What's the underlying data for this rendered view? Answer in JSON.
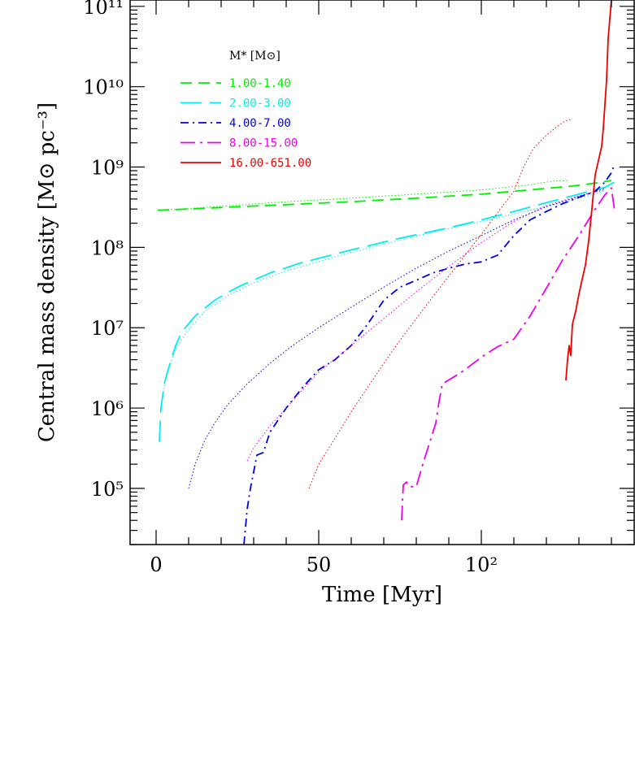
{
  "chart_data": {
    "type": "line",
    "title": "",
    "xlabel": "Time [Myr]",
    "ylabel": "Central mass density [M⊙ pc⁻³]",
    "xlim": [
      -8,
      147
    ],
    "ylim": [
      20000,
      120000000000
    ],
    "yscale": "log",
    "grid": false,
    "legend_placement": "top-left",
    "x_ticks": [
      {
        "value": 0,
        "label": "0"
      },
      {
        "value": 50,
        "label": "50"
      },
      {
        "value": 100,
        "label": "10²"
      }
    ],
    "y_ticks": [
      {
        "value": 100000,
        "label": "10⁵"
      },
      {
        "value": 1000000,
        "label": "10⁶"
      },
      {
        "value": 10000000,
        "label": "10⁷"
      },
      {
        "value": 100000000,
        "label": "10⁸"
      },
      {
        "value": 1000000000,
        "label": "10⁹"
      },
      {
        "value": 10000000000,
        "label": "10¹⁰"
      },
      {
        "value": 100000000000,
        "label": "10¹¹"
      }
    ],
    "legend_title": "M* [M⊙]",
    "series": [
      {
        "name": "1.00-1.40",
        "color": "#00ee00",
        "style": "dashed",
        "points": [
          [
            0.5,
            290000000.0
          ],
          [
            10,
            300000000.0
          ],
          [
            25,
            320000000.0
          ],
          [
            40,
            340000000.0
          ],
          [
            60,
            370000000.0
          ],
          [
            80,
            410000000.0
          ],
          [
            100,
            460000000.0
          ],
          [
            115,
            520000000.0
          ],
          [
            128,
            580000000.0
          ],
          [
            135,
            630000000.0
          ],
          [
            140,
            680000000.0
          ]
        ]
      },
      {
        "name": "1.00-1.40 (dotted)",
        "color": "#00ee00",
        "style": "dotted",
        "points": [
          [
            0.5,
            290000000.0
          ],
          [
            10,
            305000000.0
          ],
          [
            25,
            335000000.0
          ],
          [
            40,
            370000000.0
          ],
          [
            60,
            410000000.0
          ],
          [
            80,
            460000000.0
          ],
          [
            100,
            520000000.0
          ],
          [
            115,
            600000000.0
          ],
          [
            122,
            670000000.0
          ],
          [
            127,
            680000000.0
          ]
        ]
      },
      {
        "name": "2.00-3.00",
        "color": "#00eeee",
        "style": "longdash",
        "points": [
          [
            1,
            380000.0
          ],
          [
            1.5,
            1000000.0
          ],
          [
            2.5,
            2000000.0
          ],
          [
            4,
            3300000.0
          ],
          [
            6,
            6000000.0
          ],
          [
            8,
            9000000.0
          ],
          [
            12,
            14000000.0
          ],
          [
            18,
            22000000.0
          ],
          [
            25,
            32000000.0
          ],
          [
            35,
            48000000.0
          ],
          [
            45,
            65000000.0
          ],
          [
            60,
            93000000.0
          ],
          [
            75,
            130000000.0
          ],
          [
            90,
            175000000.0
          ],
          [
            100,
            220000000.0
          ],
          [
            110,
            280000000.0
          ],
          [
            120,
            360000000.0
          ],
          [
            130,
            460000000.0
          ],
          [
            138,
            560000000.0
          ],
          [
            141,
            650000000.0
          ]
        ]
      },
      {
        "name": "2.00-3.00 (dotted)",
        "color": "#00eeee",
        "style": "dotted",
        "points": [
          [
            1.5,
            1000000.0
          ],
          [
            3,
            2500000.0
          ],
          [
            6,
            5500000.0
          ],
          [
            10,
            9500000.0
          ],
          [
            15,
            16000000.0
          ],
          [
            22,
            25000000.0
          ],
          [
            30,
            36000000.0
          ],
          [
            40,
            51000000.0
          ],
          [
            55,
            76000000.0
          ],
          [
            70,
            110000000.0
          ],
          [
            85,
            155000000.0
          ],
          [
            100,
            210000000.0
          ],
          [
            115,
            290000000.0
          ],
          [
            128,
            390000000.0
          ],
          [
            138,
            500000000.0
          ]
        ]
      },
      {
        "name": "4.00-7.00 (dotted)",
        "color": "#0000cc",
        "style": "dotted",
        "points": [
          [
            10,
            100000.0
          ],
          [
            12,
            200000.0
          ],
          [
            15,
            400000.0
          ],
          [
            18,
            650000.0
          ],
          [
            22,
            1100000.0
          ],
          [
            28,
            2000000.0
          ],
          [
            35,
            3600000.0
          ],
          [
            42,
            6000000.0
          ],
          [
            50,
            10000000.0
          ],
          [
            60,
            18000000.0
          ],
          [
            70,
            32000000.0
          ],
          [
            80,
            55000000.0
          ],
          [
            90,
            90000000.0
          ],
          [
            100,
            140000000.0
          ],
          [
            110,
            220000000.0
          ],
          [
            120,
            320000000.0
          ],
          [
            130,
            430000000.0
          ],
          [
            138,
            540000000.0
          ]
        ]
      },
      {
        "name": "4.00-7.00",
        "color": "#0000dd",
        "style": "dashdot",
        "points": [
          [
            27,
            20000.0
          ],
          [
            28,
            55000.0
          ],
          [
            29,
            100000.0
          ],
          [
            30,
            160000.0
          ],
          [
            31,
            260000.0
          ],
          [
            33,
            280000.0
          ],
          [
            35,
            500000.0
          ],
          [
            40,
            1000000.0
          ],
          [
            45,
            1800000.0
          ],
          [
            50,
            3000000.0
          ],
          [
            55,
            4000000.0
          ],
          [
            60,
            6000000.0
          ],
          [
            65,
            11000000.0
          ],
          [
            70,
            22000000.0
          ],
          [
            75,
            32000000.0
          ],
          [
            80,
            39000000.0
          ],
          [
            85,
            48000000.0
          ],
          [
            90,
            55000000.0
          ],
          [
            95,
            62000000.0
          ],
          [
            100,
            66000000.0
          ],
          [
            105,
            80000000.0
          ],
          [
            110,
            140000000.0
          ],
          [
            115,
            220000000.0
          ],
          [
            120,
            280000000.0
          ],
          [
            125,
            350000000.0
          ],
          [
            130,
            420000000.0
          ],
          [
            135,
            500000000.0
          ],
          [
            138,
            650000000.0
          ],
          [
            140,
            850000000.0
          ],
          [
            141,
            1100000000.0
          ]
        ]
      },
      {
        "name": "8.00-15.00 (dotted)",
        "color": "#ee00ee",
        "style": "dotted",
        "points": [
          [
            28,
            220000.0
          ],
          [
            30,
            320000.0
          ],
          [
            35,
            600000.0
          ],
          [
            40,
            1000000.0
          ],
          [
            45,
            1700000.0
          ],
          [
            50,
            2800000.0
          ],
          [
            60,
            6000000.0
          ],
          [
            70,
            13000000.0
          ],
          [
            80,
            28000000.0
          ],
          [
            90,
            58000000.0
          ],
          [
            100,
            115000000.0
          ],
          [
            110,
            210000000.0
          ],
          [
            120,
            330000000.0
          ],
          [
            130,
            440000000.0
          ],
          [
            138,
            520000000.0
          ]
        ]
      },
      {
        "name": "8.00-15.00",
        "color": "#ee00ee",
        "style": "longdashdot",
        "points": [
          [
            75.5,
            40000.0
          ],
          [
            76,
            110000.0
          ],
          [
            77,
            120000.0
          ],
          [
            78,
            105000.0
          ],
          [
            80,
            105000.0
          ],
          [
            82,
            200000.0
          ],
          [
            84,
            360000.0
          ],
          [
            86,
            650000.0
          ],
          [
            87,
            1200000.0
          ],
          [
            88,
            2000000.0
          ],
          [
            92,
            2500000.0
          ],
          [
            95,
            3000000.0
          ],
          [
            100,
            4300000.0
          ],
          [
            105,
            5800000.0
          ],
          [
            110,
            7200000.0
          ],
          [
            115,
            14000000.0
          ],
          [
            120,
            31000000.0
          ],
          [
            125,
            70000000.0
          ],
          [
            130,
            140000000.0
          ],
          [
            135,
            300000000.0
          ],
          [
            138,
            450000000.0
          ],
          [
            140,
            550000000.0
          ],
          [
            141,
            280000000.0
          ]
        ]
      },
      {
        "name": "16.00-651.00 (dotted)",
        "color": "#ee0000",
        "style": "dotted",
        "points": [
          [
            47,
            100000.0
          ],
          [
            50,
            200000.0
          ],
          [
            55,
            420000.0
          ],
          [
            60,
            900000.0
          ],
          [
            65,
            1800000.0
          ],
          [
            70,
            3600000.0
          ],
          [
            75,
            7000000.0
          ],
          [
            80,
            13000000.0
          ],
          [
            85,
            24000000.0
          ],
          [
            90,
            44000000.0
          ],
          [
            95,
            80000000.0
          ],
          [
            100,
            145000000.0
          ],
          [
            105,
            270000000.0
          ],
          [
            110,
            500000000.0
          ],
          [
            113,
            1000000000.0
          ],
          [
            116,
            1700000000.0
          ],
          [
            120,
            2500000000.0
          ],
          [
            125,
            3600000000.0
          ],
          [
            128,
            4000000000.0
          ]
        ]
      },
      {
        "name": "16.00-651.00",
        "color": "#ee0000",
        "style": "solid",
        "points": [
          [
            126,
            2200000.0
          ],
          [
            126.5,
            4000000.0
          ],
          [
            127,
            6000000.0
          ],
          [
            127.5,
            4500000.0
          ],
          [
            128,
            11000000.0
          ],
          [
            129,
            16000000.0
          ],
          [
            130,
            26000000.0
          ],
          [
            131,
            40000000.0
          ],
          [
            132,
            60000000.0
          ],
          [
            133,
            120000000.0
          ],
          [
            134,
            300000000.0
          ],
          [
            135,
            800000000.0
          ],
          [
            136,
            1200000000.0
          ],
          [
            137,
            1800000000.0
          ],
          [
            137.5,
            3000000000.0
          ],
          [
            138.5,
            12000000000.0
          ],
          [
            139,
            40000000000.0
          ],
          [
            140,
            120000000000.0
          ]
        ]
      }
    ],
    "legend_entries": [
      {
        "label": "1.00-1.40",
        "color": "#00ee00",
        "style": "dashed"
      },
      {
        "label": "2.00-3.00",
        "color": "#00eeee",
        "style": "longdash"
      },
      {
        "label": "4.00-7.00",
        "color": "#0000dd",
        "style": "dashdot"
      },
      {
        "label": "8.00-15.00",
        "color": "#ee00ee",
        "style": "longdashdot"
      },
      {
        "label": "16.00-651.00",
        "color": "#ee0000",
        "style": "solid"
      }
    ]
  }
}
